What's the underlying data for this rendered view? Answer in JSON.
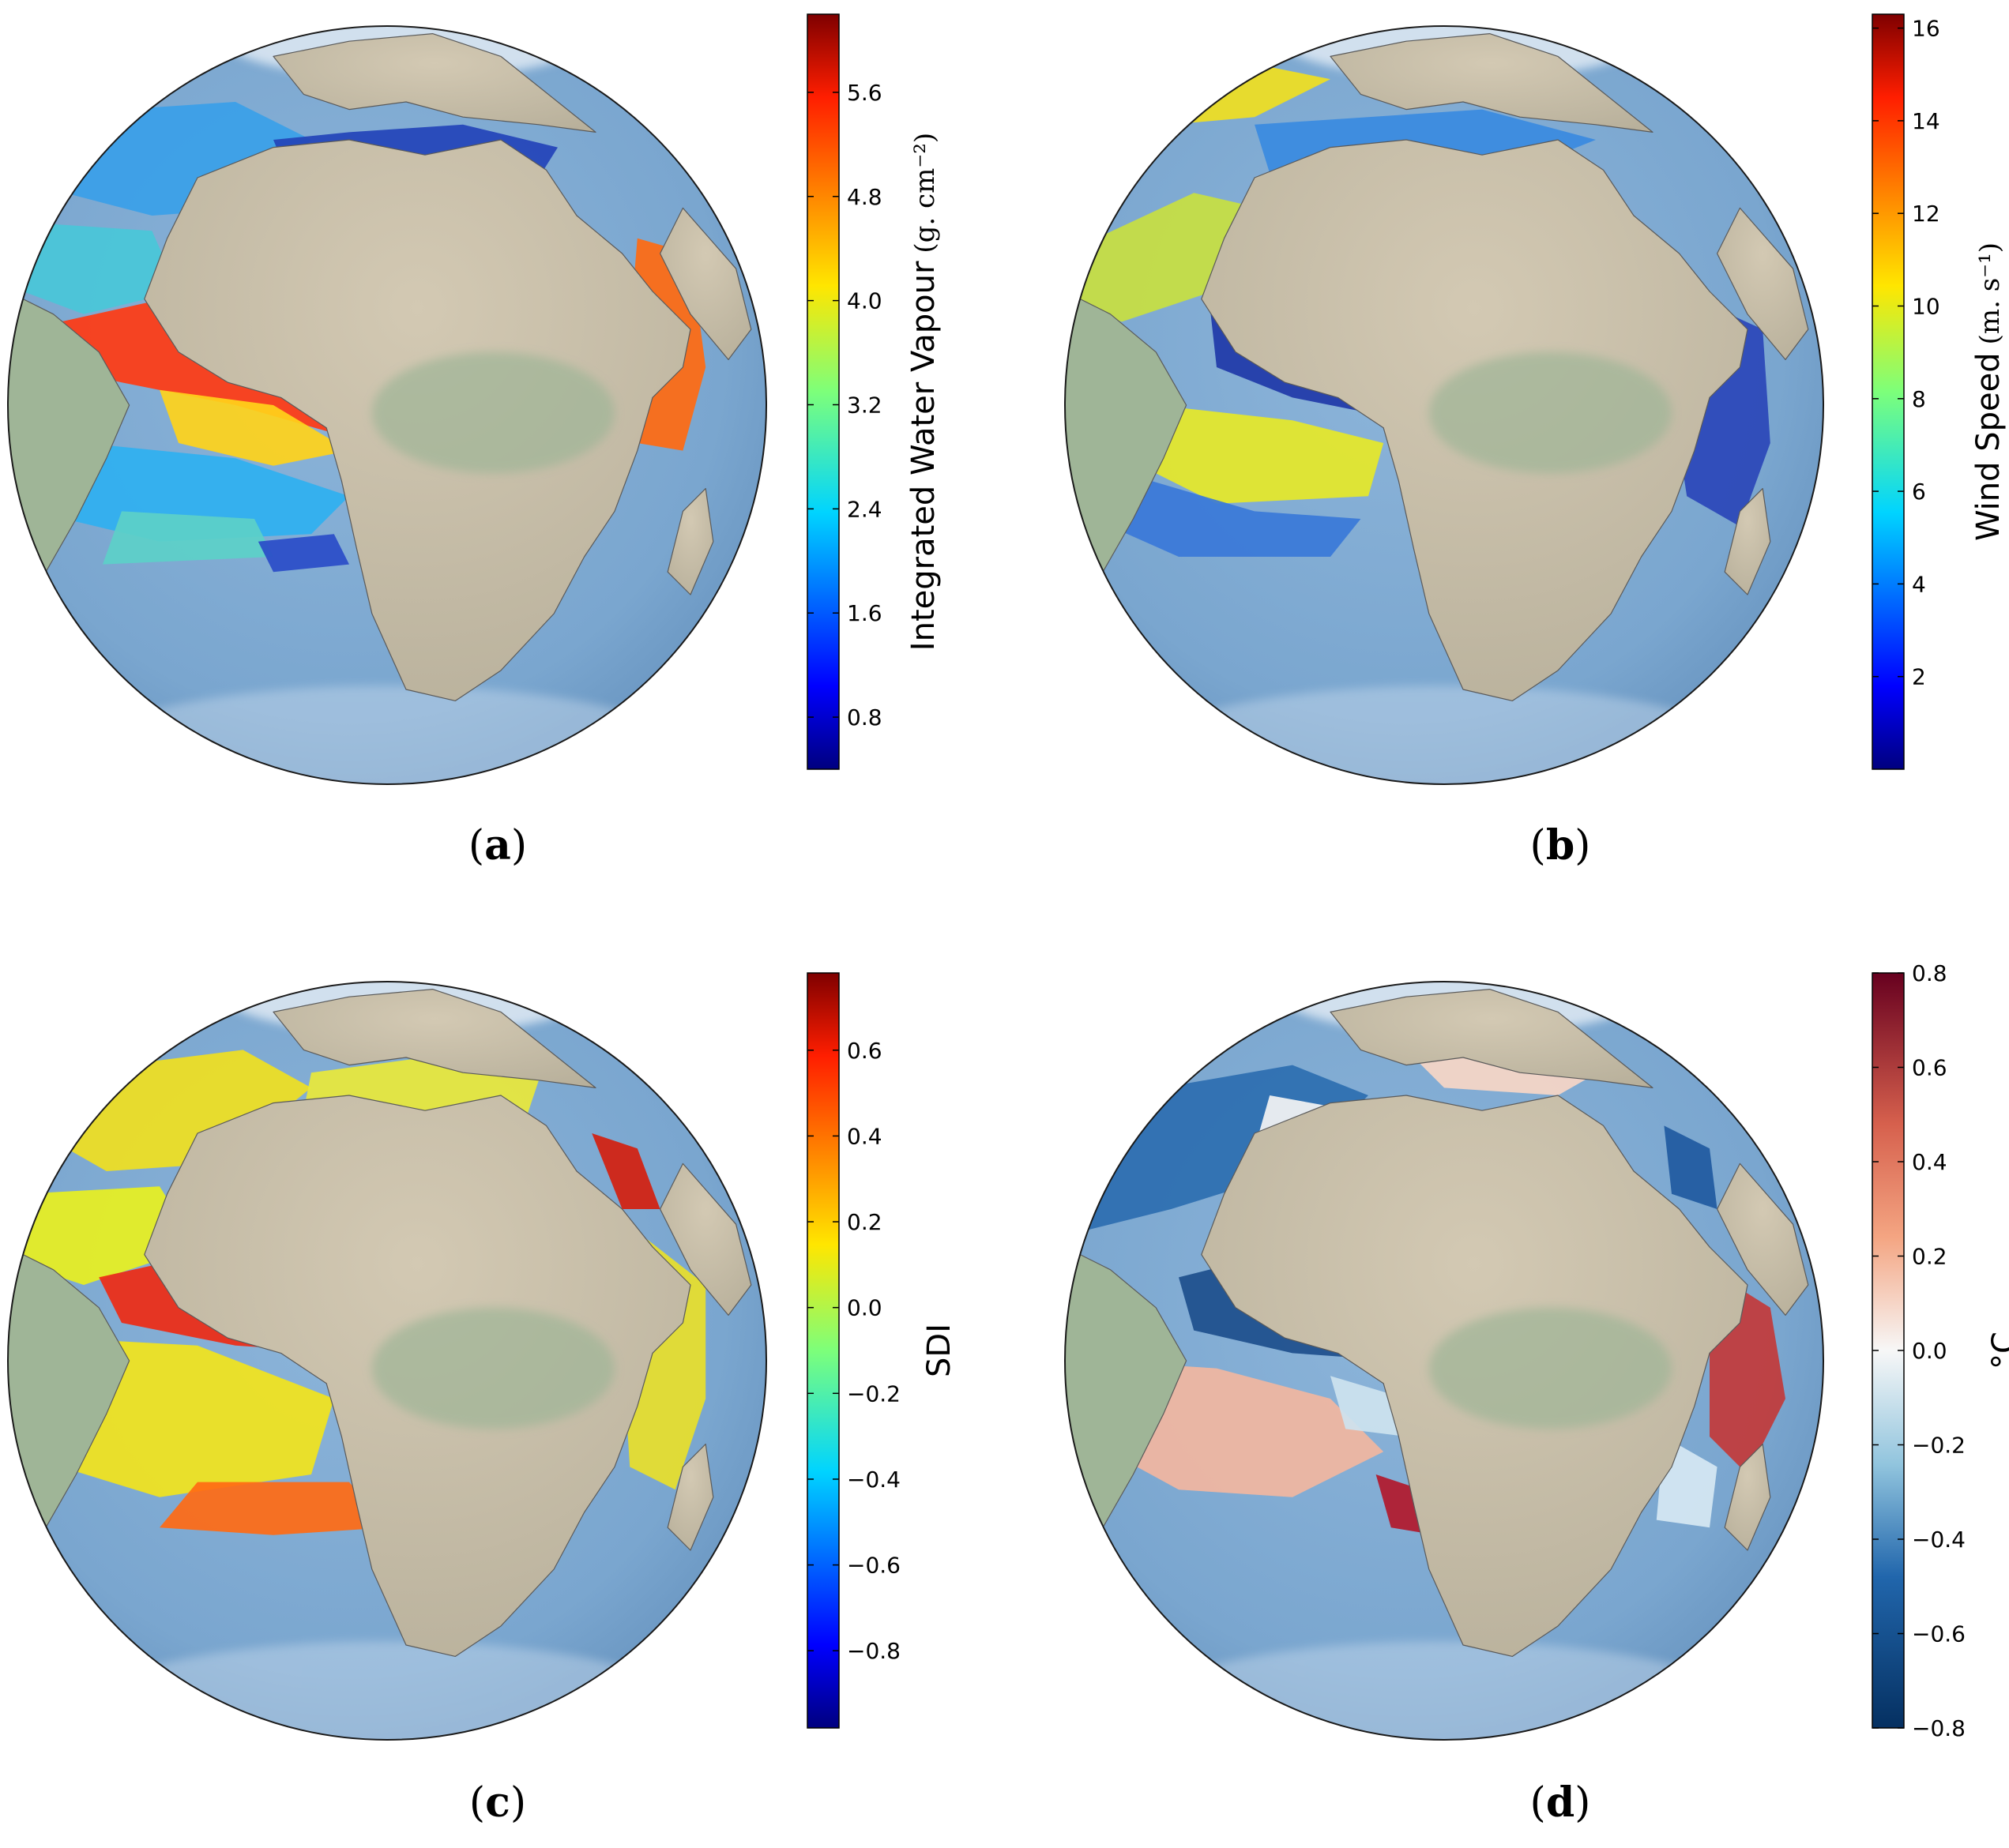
{
  "panels": [
    {
      "id": "a",
      "caption_letter": "a",
      "colorbar": {
        "label": "Integrated Water Vapour",
        "unit": "(g. cm⁻²)",
        "range": [
          0.4,
          6.2
        ],
        "ticks": [
          "0.8",
          "1.6",
          "2.4",
          "3.2",
          "4.0",
          "4.8",
          "5.6"
        ],
        "tick_values": [
          0.8,
          1.6,
          2.4,
          3.2,
          4.0,
          4.8,
          5.6
        ],
        "colormap": "jet",
        "minus_sign": false
      }
    },
    {
      "id": "b",
      "caption_letter": "b",
      "colorbar": {
        "label": "Wind Speed",
        "unit": "(m. s⁻¹)",
        "range": [
          0.0,
          16.3
        ],
        "ticks": [
          "2",
          "4",
          "6",
          "8",
          "10",
          "12",
          "14",
          "16"
        ],
        "tick_values": [
          2,
          4,
          6,
          8,
          10,
          12,
          14,
          16
        ],
        "colormap": "jet",
        "minus_sign": false
      }
    },
    {
      "id": "c",
      "caption_letter": "c",
      "colorbar": {
        "label": "SDI",
        "unit": "",
        "range": [
          -0.98,
          0.78
        ],
        "ticks": [
          "−0.8",
          "−0.6",
          "−0.4",
          "−0.2",
          "0.0",
          "0.2",
          "0.4",
          "0.6"
        ],
        "tick_values": [
          -0.8,
          -0.6,
          -0.4,
          -0.2,
          0.0,
          0.2,
          0.4,
          0.6
        ],
        "colormap": "jet",
        "minus_sign": true
      }
    },
    {
      "id": "d",
      "caption_letter": "d",
      "colorbar": {
        "label": "°C",
        "unit": "",
        "range": [
          -0.8,
          0.8
        ],
        "ticks": [
          "−0.8",
          "−0.6",
          "−0.4",
          "−0.2",
          "0.0",
          "0.2",
          "0.4",
          "0.6",
          "0.8"
        ],
        "tick_values": [
          -0.8,
          -0.6,
          -0.4,
          -0.2,
          0.0,
          0.2,
          0.4,
          0.6,
          0.8
        ],
        "colormap": "RdBu_r",
        "minus_sign": true
      }
    }
  ],
  "colors": {
    "ocean": "#7fa9d1",
    "land": "#c9bfa9",
    "land_green": "#9fb597",
    "ice": "#e6eef6"
  }
}
